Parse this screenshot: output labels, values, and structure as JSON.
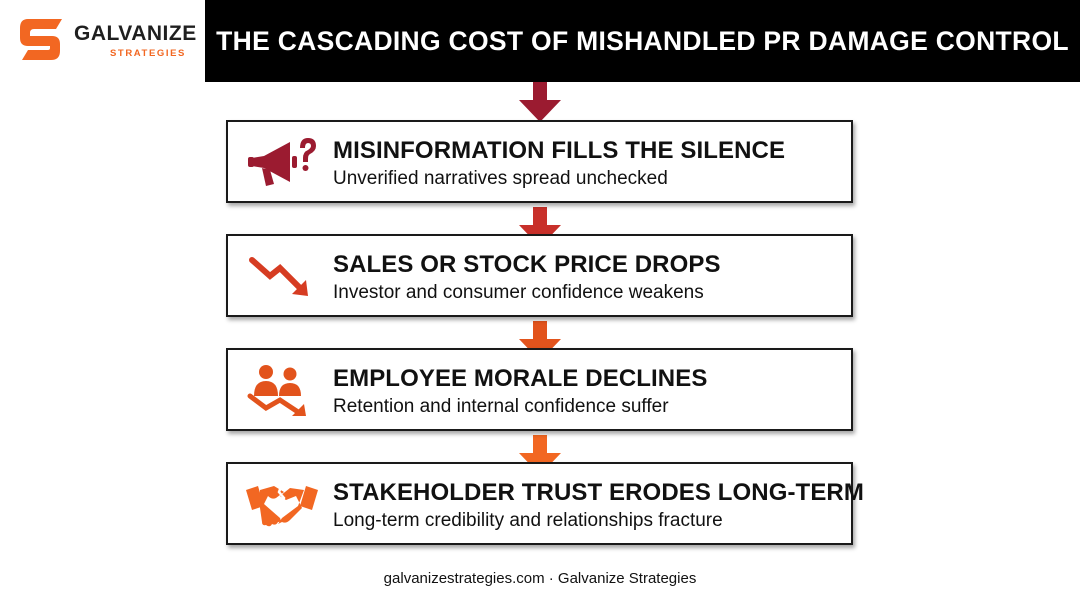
{
  "brand": {
    "name": "GALVANIZE",
    "tagline": "STRATEGIES",
    "accent_color": "#f26722",
    "logo_icon": "s-monogram-logo"
  },
  "title": "THE CASCADING COST OF MISHANDLED PR DAMAGE CONTROL",
  "steps": [
    {
      "heading": "MISINFORMATION FILLS THE SILENCE",
      "description": "Unverified narratives spread unchecked",
      "icon": "megaphone-question-icon",
      "color": "#9b1b30"
    },
    {
      "heading": "SALES OR STOCK PRICE DROPS",
      "description": "Investor and consumer confidence weakens",
      "icon": "downtrend-arrow-icon",
      "color": "#d63c22"
    },
    {
      "heading": "EMPLOYEE MORALE DECLINES",
      "description": "Retention and internal confidence suffer",
      "icon": "people-decline-icon",
      "color": "#e2531c"
    },
    {
      "heading": "STAKEHOLDER TRUST ERODES LONG-TERM",
      "description": "Long-term credibility and relationships fracture",
      "icon": "broken-handshake-icon",
      "color": "#f26722"
    }
  ],
  "footer": "galvanizestrategies.com · Galvanize Strategies"
}
